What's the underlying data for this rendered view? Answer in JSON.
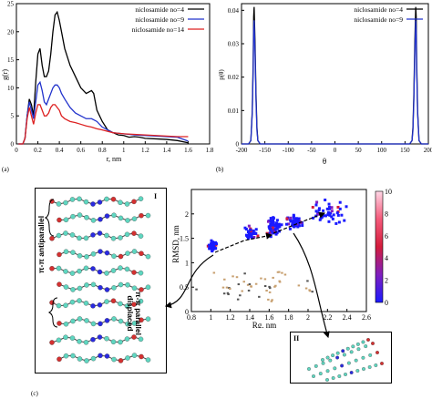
{
  "panels": {
    "a": "(a)",
    "b": "(b)",
    "c": "(c)"
  },
  "chart_data": [
    {
      "type": "line",
      "xlabel": "r, nm",
      "ylabel": "g(r)",
      "xlim": [
        0,
        1.8
      ],
      "ylim": [
        0,
        25
      ],
      "xticks": [
        "0",
        "0.2",
        "0.4",
        "0.6",
        "0.8",
        "1",
        "1.2",
        "1.4",
        "1.6",
        "1.8"
      ],
      "yticks": [
        "0",
        "5",
        "10",
        "15",
        "20",
        "25"
      ],
      "legend": "top-right",
      "series": [
        {
          "name": "niclosamide no=4",
          "color": "#000000",
          "x": [
            0.02,
            0.06,
            0.08,
            0.1,
            0.12,
            0.14,
            0.16,
            0.18,
            0.2,
            0.22,
            0.24,
            0.26,
            0.28,
            0.3,
            0.32,
            0.34,
            0.36,
            0.38,
            0.4,
            0.42,
            0.45,
            0.5,
            0.55,
            0.6,
            0.65,
            0.7,
            0.72,
            0.75,
            0.8,
            0.85,
            0.9,
            0.95,
            1.0,
            1.05,
            1.1,
            1.15,
            1.2,
            1.3,
            1.4,
            1.5,
            1.6
          ],
          "y": [
            0,
            0,
            1,
            5,
            8,
            7,
            5,
            11,
            16,
            17,
            14,
            12,
            12,
            13,
            16,
            20,
            23,
            23.5,
            22,
            20,
            17,
            14,
            12,
            10,
            9,
            9.5,
            9,
            6,
            4,
            2.5,
            2,
            1.6,
            1.5,
            1.2,
            1.3,
            1.2,
            1.0,
            0.9,
            0.8,
            0.6,
            0.2
          ]
        },
        {
          "name": "niclosamide no=9",
          "color": "#2233cc",
          "x": [
            0.02,
            0.06,
            0.08,
            0.1,
            0.12,
            0.14,
            0.16,
            0.18,
            0.2,
            0.22,
            0.24,
            0.26,
            0.28,
            0.3,
            0.32,
            0.34,
            0.36,
            0.38,
            0.4,
            0.42,
            0.45,
            0.5,
            0.55,
            0.6,
            0.65,
            0.7,
            0.75,
            0.8,
            0.85,
            0.9,
            1.0,
            1.1,
            1.2,
            1.3,
            1.4,
            1.5,
            1.6
          ],
          "y": [
            0,
            0,
            1,
            5,
            7.5,
            6,
            4.5,
            7.5,
            10.5,
            11,
            9.5,
            7.5,
            7,
            8,
            9,
            10,
            10.5,
            10.5,
            10,
            9,
            8,
            6.5,
            5.5,
            5,
            4.5,
            4.5,
            4,
            3,
            2.5,
            2,
            1.8,
            1.6,
            1.5,
            1.4,
            1.3,
            1.2,
            0.5
          ]
        },
        {
          "name": "niclosamide no=14",
          "color": "#dd2222",
          "x": [
            0.02,
            0.06,
            0.08,
            0.1,
            0.12,
            0.14,
            0.16,
            0.18,
            0.2,
            0.22,
            0.24,
            0.26,
            0.28,
            0.3,
            0.32,
            0.34,
            0.36,
            0.38,
            0.4,
            0.42,
            0.45,
            0.5,
            0.55,
            0.6,
            0.65,
            0.7,
            0.75,
            0.8,
            0.9,
            1.0,
            1.1,
            1.2,
            1.3,
            1.4,
            1.5,
            1.6
          ],
          "y": [
            0,
            0,
            1,
            4.5,
            6.5,
            5,
            3.5,
            5.5,
            7,
            7,
            6,
            5,
            5,
            5.5,
            6.5,
            7,
            7,
            6.5,
            6,
            5,
            4.5,
            4,
            3.8,
            3.5,
            3.2,
            3,
            2.7,
            2.5,
            2,
            1.8,
            1.7,
            1.6,
            1.5,
            1.4,
            1.3,
            1.3
          ]
        }
      ]
    },
    {
      "type": "line",
      "xlabel": "θ",
      "ylabel": "p(θ)",
      "xlim": [
        -200,
        200
      ],
      "ylim": [
        0,
        0.042
      ],
      "xticks": [
        "-200",
        "-150",
        "-100",
        "-50",
        "0",
        "50",
        "100",
        "150",
        "200"
      ],
      "yticks": [
        "0",
        "0.01",
        "0.02",
        "0.03",
        "0.04"
      ],
      "legend": "top-right",
      "series": [
        {
          "name": "niclosamide no=4",
          "color": "#000000",
          "x": [
            -200,
            -185,
            -180,
            -177,
            -175,
            -174,
            -173,
            -171,
            -169,
            -167,
            -165,
            -160,
            -150,
            0,
            150,
            160,
            165,
            167,
            169,
            171,
            173,
            174,
            175,
            177,
            180,
            185,
            200
          ],
          "y": [
            0,
            0,
            0.001,
            0.01,
            0.025,
            0.038,
            0.041,
            0.03,
            0.015,
            0.005,
            0.001,
            0,
            0,
            0,
            0,
            0,
            0.001,
            0.005,
            0.015,
            0.03,
            0.041,
            0.038,
            0.025,
            0.01,
            0.001,
            0,
            0
          ]
        },
        {
          "name": "niclosamide no=9",
          "color": "#2233cc",
          "x": [
            -200,
            -185,
            -180,
            -177,
            -175,
            -174,
            -173,
            -171,
            -169,
            -167,
            -165,
            -160,
            -150,
            0,
            150,
            160,
            165,
            167,
            169,
            171,
            173,
            174,
            175,
            177,
            180,
            185,
            200
          ],
          "y": [
            0,
            0,
            0.001,
            0.009,
            0.022,
            0.034,
            0.037,
            0.027,
            0.013,
            0.004,
            0.001,
            0,
            0,
            0,
            0,
            0,
            0.001,
            0.004,
            0.013,
            0.027,
            0.037,
            0.034,
            0.022,
            0.009,
            0.001,
            0,
            0
          ]
        }
      ]
    },
    {
      "type": "heatmap",
      "xlabel": "Rg, nm",
      "ylabel": "RMSD, nm",
      "xlim": [
        0.8,
        2.6
      ],
      "ylim": [
        0,
        2.5
      ],
      "xticks": [
        "0.8",
        "1",
        "1.2",
        "1.4",
        "1.6",
        "1.8",
        "2",
        "2.2",
        "2.4",
        "2.6"
      ],
      "yticks": [
        "0",
        "0.5",
        "1",
        "1.5",
        "2"
      ],
      "colorbar": {
        "min": 0,
        "max": 10,
        "ticks": [
          "0",
          "2",
          "4",
          "6",
          "8",
          "10"
        ],
        "colors": [
          "#1a1aff",
          "#7f1fbf",
          "#d41c3c",
          "#f55a7a",
          "#ffd6e6"
        ]
      },
      "clusters": [
        {
          "x": 1.02,
          "y": 1.35,
          "sx": 0.03,
          "sy": 0.07,
          "n": 40
        },
        {
          "x": 1.42,
          "y": 1.62,
          "sx": 0.04,
          "sy": 0.09,
          "n": 40
        },
        {
          "x": 1.65,
          "y": 1.72,
          "sx": 0.05,
          "sy": 0.14,
          "n": 60
        },
        {
          "x": 1.87,
          "y": 1.84,
          "sx": 0.06,
          "sy": 0.09,
          "n": 55
        },
        {
          "x": 2.2,
          "y": 2.05,
          "sx": 0.15,
          "sy": 0.15,
          "n": 45
        },
        {
          "x": 1.55,
          "y": 0.5,
          "sx": 0.4,
          "sy": 0.25,
          "n": 50
        }
      ]
    }
  ],
  "annotations": {
    "label_antiparallel": "π-π antiparallel",
    "label_parallel": "π-π parallel\ndisplaced",
    "roman_one": "I",
    "roman_two": "II"
  }
}
